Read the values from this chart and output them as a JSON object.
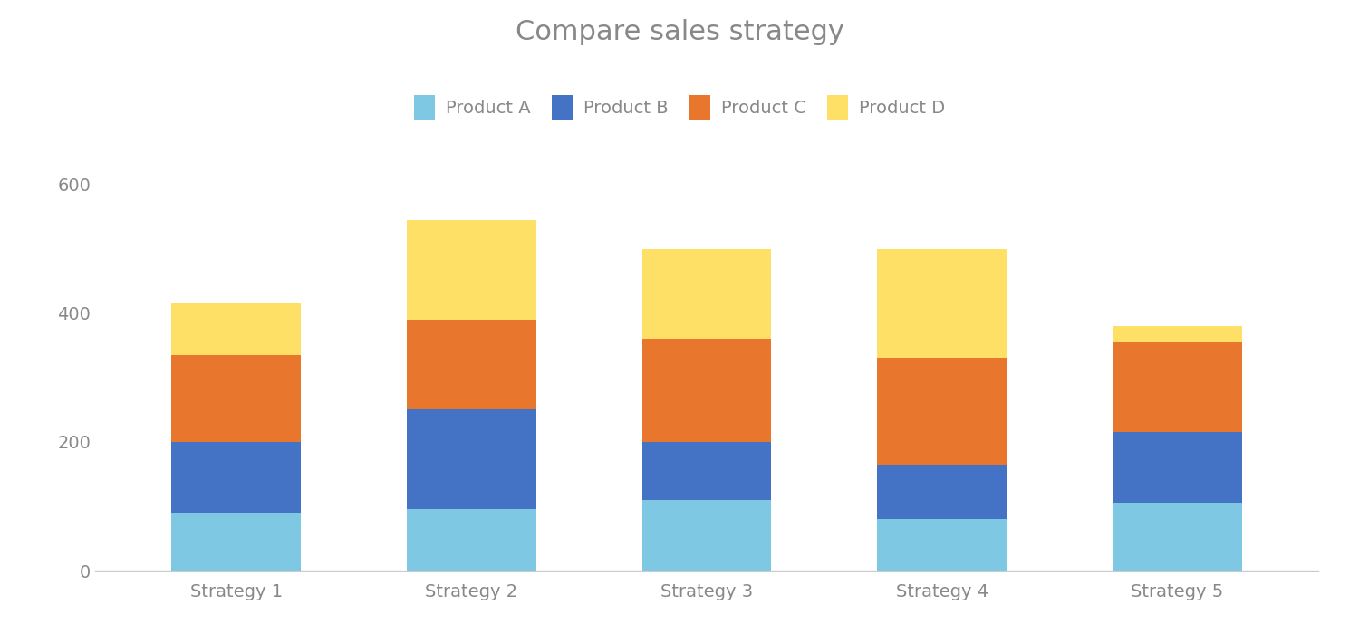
{
  "title": "Compare sales strategy",
  "categories": [
    "Strategy 1",
    "Strategy 2",
    "Strategy 3",
    "Strategy 4",
    "Strategy 5"
  ],
  "products": [
    "Product A",
    "Product B",
    "Product C",
    "Product D"
  ],
  "values": {
    "Product A": [
      90,
      95,
      110,
      80,
      105
    ],
    "Product B": [
      110,
      155,
      90,
      85,
      110
    ],
    "Product C": [
      135,
      140,
      160,
      165,
      140
    ],
    "Product D": [
      80,
      155,
      140,
      170,
      25
    ]
  },
  "colors": {
    "Product A": "#7EC8E3",
    "Product B": "#4472C4",
    "Product C": "#E8762C",
    "Product D": "#FFE066"
  },
  "ylim": [
    0,
    640
  ],
  "yticks": [
    0,
    200,
    400,
    600
  ],
  "title_color": "#888888",
  "tick_color": "#888888",
  "bar_width": 0.55,
  "title_fontsize": 22,
  "legend_fontsize": 14,
  "tick_fontsize": 14,
  "background_color": "#ffffff"
}
